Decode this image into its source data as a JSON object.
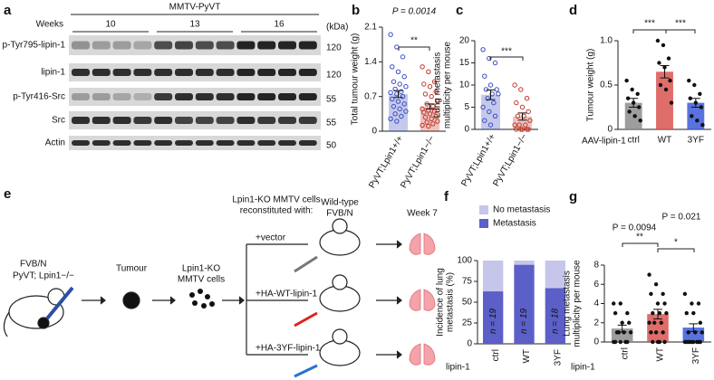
{
  "panel_labels": [
    "a",
    "b",
    "c",
    "d",
    "e",
    "f",
    "g"
  ],
  "blot": {
    "header": "MMTV-PyVT",
    "weeks_label": "Weeks",
    "weeks": [
      "10",
      "13",
      "16"
    ],
    "unit": "(kDa)",
    "rows": [
      {
        "label": "p-Tyr795-lipin-1",
        "kda": "120"
      },
      {
        "label": "lipin-1",
        "kda": "120"
      },
      {
        "label": "p-Tyr416-Src",
        "kda": "55"
      },
      {
        "label": "Src",
        "kda": "55"
      },
      {
        "label": "Actin",
        "kda": "50"
      }
    ]
  },
  "diagram": {
    "mouse_strain": "FVB/N",
    "genotype": "PyVT; Lpin1−/−",
    "tumour": "Tumour",
    "cells": [
      "Lpin1-KO",
      "MMTV cells"
    ],
    "reconstituted": [
      "Lpin1-KO MMTV cells",
      "reconstituted with:"
    ],
    "constructs": [
      "+vector",
      "+HA-WT-lipin-1",
      "+HA-3YF-lipin-1"
    ],
    "recipient": [
      "Wild-type",
      "FVB/N"
    ],
    "timepoint": "Week 7"
  },
  "chart_data": [
    {
      "type": "bar",
      "title": "P = 0.0014",
      "ylabel": [
        "Total tumour weight (g)"
      ],
      "markers": "open",
      "categories": [
        "PyVT;Lpin1+/+",
        "PyVT;Lpin1−/−"
      ],
      "colors": [
        "#3b4cc0",
        "#c0392b"
      ],
      "values": [
        0.75,
        0.5
      ],
      "errors": [
        0.07,
        0.05
      ],
      "points": [
        [
          1.95,
          1.7,
          1.5,
          1.3,
          1.2,
          1.1,
          1.0,
          0.95,
          0.9,
          0.85,
          0.8,
          0.78,
          0.75,
          0.7,
          0.65,
          0.6,
          0.55,
          0.5,
          0.45,
          0.4,
          0.35,
          0.3,
          0.25,
          0.2
        ],
        [
          1.3,
          1.2,
          1.0,
          0.95,
          0.9,
          0.8,
          0.75,
          0.7,
          0.6,
          0.55,
          0.5,
          0.45,
          0.42,
          0.4,
          0.38,
          0.35,
          0.3,
          0.28,
          0.25,
          0.2,
          0.18,
          0.15,
          0.12,
          0.1
        ]
      ],
      "ylim": [
        0,
        2.1
      ],
      "yticks": [
        0,
        0.7,
        1.4,
        2.1
      ],
      "annotations": [
        "**"
      ]
    },
    {
      "type": "bar",
      "ylabel": [
        "Lung metastasis",
        "multiplicity per mouse"
      ],
      "markers": "open",
      "categories": [
        "PyVT;Lpin1+/+",
        "PyVT;Lpin1−/−"
      ],
      "colors": [
        "#3b4cc0",
        "#c0392b"
      ],
      "values": [
        7.8,
        2.9
      ],
      "errors": [
        1.1,
        0.8
      ],
      "points": [
        [
          18,
          16,
          15,
          12,
          10,
          9,
          9,
          8,
          8,
          7,
          6,
          5,
          4,
          3,
          2,
          1
        ],
        [
          10,
          9,
          7,
          6,
          5,
          4,
          3,
          3,
          2,
          1,
          1,
          1,
          0,
          0,
          0,
          0,
          0
        ]
      ],
      "ylim": [
        0,
        20
      ],
      "yticks": [
        0,
        5,
        10,
        15,
        20
      ],
      "annotations": [
        "***"
      ]
    },
    {
      "type": "bar",
      "ylabel": [
        "Tumour weight (g)"
      ],
      "markers": "filled",
      "x_label": "AAV-lipin-1",
      "categories": [
        "ctrl",
        "WT",
        "3YF"
      ],
      "colors": [
        "#8c8c8c",
        "#d9534f",
        "#3b5bdb"
      ],
      "values": [
        0.3,
        0.65,
        0.3
      ],
      "errors": [
        0.05,
        0.07,
        0.05
      ],
      "points": [
        [
          0.55,
          0.45,
          0.4,
          0.35,
          0.3,
          0.25,
          0.2,
          0.15,
          0.1
        ],
        [
          1.0,
          0.95,
          0.8,
          0.75,
          0.7,
          0.55,
          0.5,
          0.45,
          0.3
        ],
        [
          0.55,
          0.5,
          0.4,
          0.35,
          0.3,
          0.25,
          0.15,
          0.1,
          0.05
        ]
      ],
      "ylim": [
        0,
        1
      ],
      "yticks": [
        0,
        0.5,
        {
          "value": 1,
          "label": "1.0"
        }
      ],
      "annotations": [
        "***",
        "***"
      ]
    },
    {
      "type": "stacked_bar",
      "ylabel": [
        "Incidence of lung",
        "metastasis (%)"
      ],
      "x_label": "lipin-1",
      "categories": [
        "ctrl",
        "WT",
        "3YF"
      ],
      "bar_labels": [
        "n = 19",
        "n = 19",
        "n = 18"
      ],
      "series": [
        {
          "name": "Metastasis",
          "color": "#5b5fc7",
          "values": [
            63,
            95,
            67
          ]
        },
        {
          "name": "No metastasis",
          "color": "#c5c6ea",
          "values": [
            37,
            5,
            33
          ]
        }
      ],
      "ylim": [
        0,
        100
      ],
      "yticks": [
        0,
        25,
        50,
        75,
        100
      ]
    },
    {
      "type": "bar",
      "ylabel": [
        "Lung metastasis",
        "multiplicity per mouse"
      ],
      "markers": "filled",
      "x_label": "lipin-1",
      "categories": [
        "ctrl",
        "WT",
        "3YF"
      ],
      "colors": [
        "#8c8c8c",
        "#d9534f",
        "#3b5bdb"
      ],
      "values": [
        1.4,
        2.9,
        1.5
      ],
      "errors": [
        0.35,
        0.5,
        0.4
      ],
      "points": [
        [
          4,
          4,
          3,
          3,
          2,
          2,
          1,
          1,
          1,
          1,
          0,
          0,
          0,
          0,
          0
        ],
        [
          7,
          6,
          5,
          5,
          4,
          4,
          3,
          3,
          3,
          2,
          2,
          2,
          1,
          1,
          1,
          0,
          0,
          0,
          0
        ],
        [
          5,
          4,
          4,
          3,
          3,
          2,
          1,
          1,
          1,
          0,
          0,
          0,
          0,
          0,
          0,
          0,
          0,
          0
        ]
      ],
      "ylim": [
        0,
        8
      ],
      "yticks": [
        0,
        2,
        4,
        6,
        8
      ],
      "annotations": [
        "P = 0.0094",
        "**",
        "*",
        "P = 0.021"
      ]
    }
  ]
}
